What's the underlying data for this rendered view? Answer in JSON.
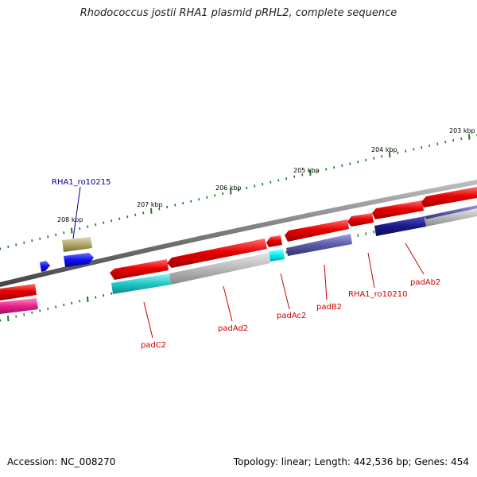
{
  "title": "Rhodococcus jostii RHA1 plasmid pRHL2, complete sequence",
  "footer": {
    "accession": "Accession: NC_008270",
    "summary": "Topology: linear; Length: 442,536 bp; Genes: 454"
  },
  "scale_labels": [
    "203 kbp",
    "204 kbp",
    "205 kbp",
    "206 kbp",
    "207 kbp",
    "208 kbp"
  ],
  "gene_labels": [
    {
      "text": "RHA1_ro10215",
      "color": "#00008b"
    },
    {
      "text": "padC2",
      "color": "#cc0000"
    },
    {
      "text": "padAd2",
      "color": "#cc0000"
    },
    {
      "text": "padAc2",
      "color": "#cc0000"
    },
    {
      "text": "padB2",
      "color": "#cc0000"
    },
    {
      "text": "RHA1_ro10210",
      "color": "#cc0000"
    },
    {
      "text": "padAb2",
      "color": "#cc0000"
    }
  ],
  "colors": {
    "backbone": "#7a7a7a",
    "cds_forward": "#e80000",
    "cds_pink": "#e8208a",
    "cog_cyan": "#20c8c8",
    "cog_gray": "#b8b8b8",
    "cog_navy": "#1a1a8c",
    "cog_olive": "#b0a868",
    "cog_blue": "#1010ee",
    "tick": "#1a7a1a"
  }
}
